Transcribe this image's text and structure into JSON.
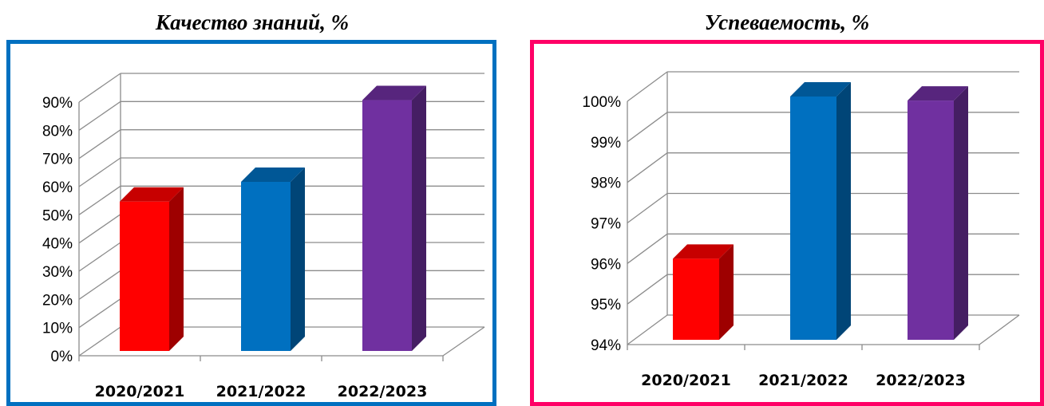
{
  "chart_data": [
    {
      "type": "bar",
      "title": "Качество знаний, %",
      "categories": [
        "2020/2021",
        "2021/2022",
        "2022/2023"
      ],
      "values": [
        53,
        60,
        89
      ],
      "bar_colors": [
        "#ff0000",
        "#0070c0",
        "#7030a0"
      ],
      "yticks": [
        "0%",
        "10%",
        "20%",
        "30%",
        "40%",
        "50%",
        "60%",
        "70%",
        "80%",
        "90%"
      ],
      "ylim": [
        0,
        90
      ],
      "grid": true,
      "frame_color": "#0070c0"
    },
    {
      "type": "bar",
      "title": "Успеваемость, %",
      "categories": [
        "2020/2021",
        "2021/2022",
        "2022/2023"
      ],
      "values": [
        96,
        100,
        99.9
      ],
      "bar_colors": [
        "#ff0000",
        "#0070c0",
        "#7030a0"
      ],
      "yticks": [
        "94%",
        "95%",
        "96%",
        "97%",
        "98%",
        "99%",
        "100%"
      ],
      "ylim": [
        94,
        100
      ],
      "grid": true,
      "frame_color": "#ff0066"
    }
  ]
}
